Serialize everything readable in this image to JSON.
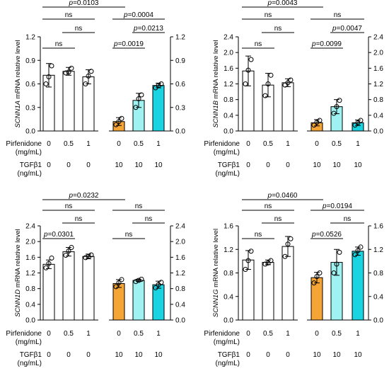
{
  "chart_data": [
    {
      "type": "bar",
      "ylabel_gene": "SCNN1A",
      "ylabel_rest": " mRNA relative level",
      "ylim": [
        0,
        1.2
      ],
      "yticks": [
        "0.0",
        "0.3",
        "0.6",
        "0.9",
        "1.2"
      ],
      "ytick_values": [
        0,
        0.3,
        0.6,
        0.9,
        1.2
      ],
      "yticks_right": [
        "0.0",
        "0.3",
        "0.6",
        "0.9",
        "1.2"
      ],
      "pirfenidone": [
        "0",
        "0.5",
        "1",
        "0",
        "0.5",
        "1"
      ],
      "tgfb1": [
        "0",
        "0",
        "0",
        "10",
        "10",
        "10"
      ],
      "values": [
        0.71,
        0.76,
        0.69,
        0.12,
        0.39,
        0.58
      ],
      "errors": [
        0.15,
        0.05,
        0.09,
        0.05,
        0.09,
        0.03
      ],
      "points": [
        [
          0.6,
          0.69,
          0.83
        ],
        [
          0.74,
          0.75,
          0.8
        ],
        [
          0.6,
          0.7,
          0.76
        ],
        [
          0.08,
          0.12,
          0.16
        ],
        [
          0.3,
          0.41,
          0.46
        ],
        [
          0.55,
          0.58,
          0.6
        ]
      ],
      "colors": [
        "#ffffff",
        "#ffffff",
        "#ffffff",
        "#f4a535",
        "#9ef2f2",
        "#1ad4e2"
      ],
      "brackets": [
        {
          "from": 0,
          "to": 3,
          "text": "p=0.0103",
          "level": 4
        },
        {
          "from": 3,
          "to": 5,
          "text": "p=0.0004",
          "level": 3
        },
        {
          "from": 4,
          "to": 5,
          "text": "p=0.0213",
          "level": 2
        },
        {
          "from": 3,
          "to": 4,
          "text": "p=0.0019",
          "level": 1
        },
        {
          "from": 0,
          "to": 2,
          "text": "ns",
          "level": 3
        },
        {
          "from": 1,
          "to": 2,
          "text": "ns",
          "level": 2
        },
        {
          "from": 0,
          "to": 1,
          "text": "ns",
          "level": 1
        }
      ]
    },
    {
      "type": "bar",
      "ylabel_gene": "SCNN1B",
      "ylabel_rest": " mRNA relative level",
      "ylim": [
        0,
        2.4
      ],
      "yticks": [
        "0.0",
        "0.4",
        "0.8",
        "1.2",
        "1.6",
        "2.0",
        "2.4"
      ],
      "ytick_values": [
        0,
        0.4,
        0.8,
        1.2,
        1.6,
        2.0,
        2.4
      ],
      "yticks_right": [
        "0.0",
        "0.4",
        "0.8",
        "1.2",
        "1.6",
        "2.0",
        "2.4"
      ],
      "pirfenidone": [
        "0",
        "0.5",
        "1",
        "0",
        "0.5",
        "1"
      ],
      "tgfb1": [
        "0",
        "0",
        "0",
        "10",
        "10",
        "10"
      ],
      "values": [
        1.53,
        1.17,
        1.23,
        0.21,
        0.62,
        0.21
      ],
      "errors": [
        0.38,
        0.3,
        0.1,
        0.08,
        0.18,
        0.07
      ],
      "points": [
        [
          1.2,
          1.55,
          1.82
        ],
        [
          0.9,
          1.2,
          1.42
        ],
        [
          1.17,
          1.23,
          1.3
        ],
        [
          0.15,
          0.22,
          0.27
        ],
        [
          0.45,
          0.62,
          0.78
        ],
        [
          0.15,
          0.21,
          0.27
        ]
      ],
      "colors": [
        "#ffffff",
        "#ffffff",
        "#ffffff",
        "#f4a535",
        "#9ef2f2",
        "#1ad4e2"
      ],
      "brackets": [
        {
          "from": 0,
          "to": 3,
          "text": "p=0.0043",
          "level": 4
        },
        {
          "from": 3,
          "to": 5,
          "text": "ns",
          "level": 3
        },
        {
          "from": 4,
          "to": 5,
          "text": "p=0.0047",
          "level": 2
        },
        {
          "from": 3,
          "to": 4,
          "text": "p=0.0099",
          "level": 1
        },
        {
          "from": 0,
          "to": 2,
          "text": "ns",
          "level": 3
        },
        {
          "from": 1,
          "to": 2,
          "text": "ns",
          "level": 2
        },
        {
          "from": 0,
          "to": 1,
          "text": "ns",
          "level": 1
        }
      ]
    },
    {
      "type": "bar",
      "ylabel_gene": "SCNN1D",
      "ylabel_rest": " mRNA relative level",
      "ylim": [
        0,
        2.4
      ],
      "yticks": [
        "0.0",
        "0.4",
        "0.8",
        "1.2",
        "1.6",
        "2.0",
        "2.4"
      ],
      "ytick_values": [
        0,
        0.4,
        0.8,
        1.2,
        1.6,
        2.0,
        2.4
      ],
      "yticks_right": [
        "0.0",
        "0.4",
        "0.8",
        "1.2",
        "1.6",
        "2.0",
        "2.4"
      ],
      "pirfenidone": [
        "0",
        "0.5",
        "1",
        "0",
        "0.5",
        "1"
      ],
      "tgfb1": [
        "0",
        "0",
        "0",
        "10",
        "10",
        "10"
      ],
      "values": [
        1.42,
        1.74,
        1.62,
        0.93,
        1.01,
        0.9
      ],
      "errors": [
        0.11,
        0.11,
        0.06,
        0.1,
        0.03,
        0.09
      ],
      "points": [
        [
          1.33,
          1.44,
          1.58
        ],
        [
          1.65,
          1.76,
          1.85
        ],
        [
          1.59,
          1.62,
          1.66
        ],
        [
          0.85,
          0.95,
          1.03
        ],
        [
          0.98,
          1.01,
          1.04
        ],
        [
          0.82,
          0.9,
          0.96
        ]
      ],
      "colors": [
        "#ffffff",
        "#ffffff",
        "#ffffff",
        "#f4a535",
        "#9ef2f2",
        "#1ad4e2"
      ],
      "brackets": [
        {
          "from": 0,
          "to": 3,
          "text": "p=0.0232",
          "level": 4
        },
        {
          "from": 3,
          "to": 5,
          "text": "ns",
          "level": 3
        },
        {
          "from": 4,
          "to": 5,
          "text": "ns",
          "level": 2
        },
        {
          "from": 3,
          "to": 4,
          "text": "ns",
          "level": 1
        },
        {
          "from": 0,
          "to": 2,
          "text": "ns",
          "level": 3
        },
        {
          "from": 1,
          "to": 2,
          "text": "ns",
          "level": 2
        },
        {
          "from": 0,
          "to": 1,
          "text": "p=0.0301",
          "level": 1
        }
      ]
    },
    {
      "type": "bar",
      "ylabel_gene": "SCNN1G",
      "ylabel_rest": " mRNA relative level",
      "ylim": [
        0,
        1.6
      ],
      "yticks": [
        "0.0",
        "0.4",
        "0.8",
        "1.2",
        "1.6"
      ],
      "ytick_values": [
        0,
        0.4,
        0.8,
        1.2,
        1.6
      ],
      "yticks_right": [
        "0.0",
        "0.4",
        "0.8",
        "1.2",
        "1.6"
      ],
      "pirfenidone": [
        "0",
        "0.5",
        "1",
        "0",
        "0.5",
        "1"
      ],
      "tgfb1": [
        "0",
        "0",
        "0",
        "10",
        "10",
        "10"
      ],
      "values": [
        1.02,
        0.98,
        1.25,
        0.72,
        0.98,
        1.17
      ],
      "errors": [
        0.16,
        0.04,
        0.17,
        0.09,
        0.22,
        0.07
      ],
      "points": [
        [
          0.86,
          1.01,
          1.17
        ],
        [
          0.95,
          0.97,
          1.01
        ],
        [
          1.08,
          1.29,
          1.38
        ],
        [
          0.63,
          0.74,
          0.8
        ],
        [
          0.8,
          0.95,
          1.15
        ],
        [
          1.11,
          1.18,
          1.24
        ]
      ],
      "colors": [
        "#ffffff",
        "#ffffff",
        "#ffffff",
        "#f4a535",
        "#9ef2f2",
        "#1ad4e2"
      ],
      "brackets": [
        {
          "from": 0,
          "to": 3,
          "text": "p=0.0460",
          "level": 4
        },
        {
          "from": 3,
          "to": 5,
          "text": "p=0.0194",
          "level": 3
        },
        {
          "from": 4,
          "to": 5,
          "text": "ns",
          "level": 2
        },
        {
          "from": 3,
          "to": 4,
          "text": "p=0.0526",
          "level": 1
        },
        {
          "from": 0,
          "to": 2,
          "text": "ns",
          "level": 3
        },
        {
          "from": 1,
          "to": 2,
          "text": "ns",
          "level": 2
        },
        {
          "from": 0,
          "to": 1,
          "text": "ns",
          "level": 1
        }
      ]
    }
  ],
  "row_labels": {
    "pirfenidone_line1": "Pirfenidone",
    "pirfenidone_line2": "(mg/mL)",
    "tgfb1_line1": "TGFβ1",
    "tgfb1_line2": "(ng/mL)"
  }
}
